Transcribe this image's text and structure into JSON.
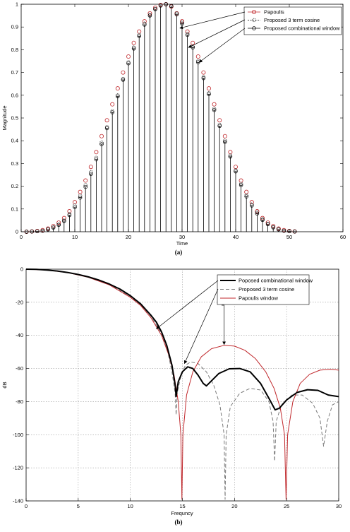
{
  "panels": {
    "a": {
      "label": "(a)"
    },
    "b": {
      "label": "(b)"
    }
  },
  "colors": {
    "papoulis": "#c0282c",
    "cosine3": "#7a7a7a",
    "combinational": "#000000",
    "stem": "#000000",
    "grid": "#9a9a9a"
  },
  "chart_data": [
    {
      "id": "a",
      "type": "scatter",
      "style": "stem",
      "xlabel": "Time",
      "ylabel": "Magnitude",
      "xlim": [
        0,
        60
      ],
      "ylim": [
        0,
        1
      ],
      "xticks": [
        "0",
        "10",
        "20",
        "30",
        "40",
        "50",
        "60"
      ],
      "yticks": [
        "0",
        "0.1",
        "0.2",
        "0.3",
        "0.4",
        "0.5",
        "0.6",
        "0.7",
        "0.8",
        "0.9",
        "1"
      ],
      "grid": false,
      "legend_position": "top-right",
      "x": [
        1,
        2,
        3,
        4,
        5,
        6,
        7,
        8,
        9,
        10,
        11,
        12,
        13,
        14,
        15,
        16,
        17,
        18,
        19,
        20,
        21,
        22,
        23,
        24,
        25,
        26,
        27,
        28,
        29,
        30,
        31,
        32,
        33,
        34,
        35,
        36,
        37,
        38,
        39,
        40,
        41,
        42,
        43,
        44,
        45,
        46,
        47,
        48,
        49,
        50,
        51
      ],
      "series": [
        {
          "name": "Papoulis",
          "marker": "circle",
          "color": "#c0282c",
          "values": [
            0,
            0.001,
            0.003,
            0.007,
            0.014,
            0.025,
            0.04,
            0.06,
            0.09,
            0.13,
            0.175,
            0.225,
            0.285,
            0.35,
            0.42,
            0.49,
            0.56,
            0.63,
            0.7,
            0.77,
            0.83,
            0.88,
            0.925,
            0.96,
            0.985,
            0.997,
            1,
            0.99,
            0.96,
            0.925,
            0.88,
            0.83,
            0.77,
            0.7,
            0.63,
            0.56,
            0.49,
            0.42,
            0.35,
            0.285,
            0.225,
            0.175,
            0.13,
            0.09,
            0.06,
            0.04,
            0.025,
            0.014,
            0.007,
            0.003,
            0.001
          ]
        },
        {
          "name": "Proposed 3 term cosine",
          "marker": "dash-circle",
          "color": "#000000",
          "values": [
            0,
            0.001,
            0.002,
            0.005,
            0.011,
            0.02,
            0.032,
            0.05,
            0.078,
            0.115,
            0.158,
            0.205,
            0.262,
            0.325,
            0.392,
            0.46,
            0.53,
            0.6,
            0.672,
            0.745,
            0.81,
            0.865,
            0.915,
            0.953,
            0.98,
            0.995,
            1,
            0.993,
            0.96,
            0.92,
            0.87,
            0.815,
            0.75,
            0.68,
            0.61,
            0.54,
            0.47,
            0.4,
            0.335,
            0.27,
            0.21,
            0.16,
            0.12,
            0.085,
            0.055,
            0.035,
            0.02,
            0.011,
            0.005,
            0.002,
            0.001
          ]
        },
        {
          "name": "Proposed combinational window",
          "marker": "circle-plus",
          "color": "#000000",
          "values": [
            0,
            0.001,
            0.002,
            0.004,
            0.01,
            0.018,
            0.03,
            0.047,
            0.073,
            0.108,
            0.15,
            0.197,
            0.254,
            0.318,
            0.385,
            0.455,
            0.525,
            0.595,
            0.668,
            0.74,
            0.805,
            0.86,
            0.91,
            0.95,
            0.978,
            0.994,
            1,
            0.992,
            0.955,
            0.915,
            0.865,
            0.81,
            0.745,
            0.675,
            0.605,
            0.535,
            0.465,
            0.395,
            0.33,
            0.265,
            0.205,
            0.155,
            0.115,
            0.08,
            0.052,
            0.033,
            0.019,
            0.01,
            0.004,
            0.002,
            0.001
          ]
        }
      ]
    },
    {
      "id": "b",
      "type": "line",
      "xlabel": "Frequncy",
      "ylabel": "dB",
      "xlim": [
        0,
        30
      ],
      "ylim": [
        -140,
        0
      ],
      "xticks": [
        "0",
        "5",
        "10",
        "15",
        "20",
        "25",
        "30"
      ],
      "yticks": [
        "0",
        "-20",
        "-40",
        "-60",
        "-80",
        "-100",
        "-120",
        "-140"
      ],
      "grid": true,
      "legend_position": "top-right",
      "series": [
        {
          "name": "Poposed combinational window",
          "color": "#000000",
          "width": 2,
          "dash": "",
          "points": [
            [
              0,
              0
            ],
            [
              1,
              -0.1
            ],
            [
              2,
              -0.5
            ],
            [
              3,
              -1.1
            ],
            [
              4,
              -2
            ],
            [
              5,
              -3.2
            ],
            [
              6,
              -4.7
            ],
            [
              7,
              -6.6
            ],
            [
              8,
              -9
            ],
            [
              9,
              -12
            ],
            [
              10,
              -16
            ],
            [
              11,
              -21
            ],
            [
              12,
              -28
            ],
            [
              12.5,
              -32
            ],
            [
              13,
              -38
            ],
            [
              13.5,
              -46
            ],
            [
              14,
              -58
            ],
            [
              14.3,
              -70
            ],
            [
              14.4,
              -77
            ],
            [
              14.6,
              -68
            ],
            [
              15,
              -62
            ],
            [
              15.5,
              -59
            ],
            [
              16,
              -60
            ],
            [
              16.5,
              -64
            ],
            [
              17,
              -69
            ],
            [
              17.3,
              -70.5
            ],
            [
              17.7,
              -68
            ],
            [
              18.5,
              -63
            ],
            [
              19.5,
              -60.2
            ],
            [
              20.5,
              -60
            ],
            [
              21.5,
              -62
            ],
            [
              22.5,
              -69
            ],
            [
              23.3,
              -78
            ],
            [
              23.9,
              -85
            ],
            [
              24.3,
              -84
            ],
            [
              25,
              -79
            ],
            [
              26,
              -74.5
            ],
            [
              27,
              -72.8
            ],
            [
              28,
              -73.2
            ],
            [
              29,
              -76
            ],
            [
              30,
              -77
            ]
          ]
        },
        {
          "name": "Proposed 3 term cosine",
          "color": "#7a7a7a",
          "width": 1,
          "dash": "5,3",
          "points": [
            [
              0,
              0
            ],
            [
              2,
              -0.5
            ],
            [
              4,
              -2
            ],
            [
              6,
              -4.8
            ],
            [
              8,
              -9.2
            ],
            [
              10,
              -16.5
            ],
            [
              11,
              -21.5
            ],
            [
              12,
              -28.5
            ],
            [
              13,
              -39
            ],
            [
              13.6,
              -50
            ],
            [
              14,
              -62
            ],
            [
              14.3,
              -75
            ],
            [
              14.4,
              -88
            ],
            [
              14.5,
              -75
            ],
            [
              14.9,
              -63
            ],
            [
              15.3,
              -58
            ],
            [
              15.8,
              -56
            ],
            [
              16.5,
              -57
            ],
            [
              17.3,
              -62
            ],
            [
              18,
              -70
            ],
            [
              18.6,
              -82
            ],
            [
              19,
              -100
            ],
            [
              19.1,
              -139
            ],
            [
              19.2,
              -100
            ],
            [
              19.6,
              -83
            ],
            [
              20.5,
              -75
            ],
            [
              21.5,
              -72
            ],
            [
              22.5,
              -73
            ],
            [
              23.3,
              -80
            ],
            [
              23.7,
              -92
            ],
            [
              23.85,
              -116
            ],
            [
              24,
              -92
            ],
            [
              24.5,
              -82
            ],
            [
              25.5,
              -76
            ],
            [
              26.5,
              -76
            ],
            [
              27.5,
              -81
            ],
            [
              28.2,
              -90
            ],
            [
              28.55,
              -107
            ],
            [
              28.9,
              -92
            ],
            [
              29.4,
              -82
            ],
            [
              30,
              -80
            ]
          ]
        },
        {
          "name": "Papoulis window",
          "color": "#c0282c",
          "width": 1,
          "dash": "",
          "points": [
            [
              0,
              0
            ],
            [
              2,
              -0.5
            ],
            [
              4,
              -2.1
            ],
            [
              6,
              -5
            ],
            [
              8,
              -9.5
            ],
            [
              10,
              -17
            ],
            [
              11,
              -22
            ],
            [
              12,
              -29.5
            ],
            [
              13,
              -40
            ],
            [
              13.7,
              -52
            ],
            [
              14.2,
              -64
            ],
            [
              14.6,
              -80
            ],
            [
              14.85,
              -100
            ],
            [
              14.95,
              -139
            ],
            [
              15.05,
              -100
            ],
            [
              15.4,
              -76
            ],
            [
              16,
              -62
            ],
            [
              16.8,
              -53
            ],
            [
              17.8,
              -48
            ],
            [
              19,
              -46
            ],
            [
              20,
              -46.5
            ],
            [
              21,
              -49
            ],
            [
              22,
              -54
            ],
            [
              23,
              -62
            ],
            [
              23.8,
              -72
            ],
            [
              24.4,
              -84
            ],
            [
              24.8,
              -100
            ],
            [
              24.95,
              -139
            ],
            [
              25.1,
              -100
            ],
            [
              25.6,
              -80
            ],
            [
              26.3,
              -69
            ],
            [
              27.2,
              -63.5
            ],
            [
              28.2,
              -61
            ],
            [
              29.2,
              -60.5
            ],
            [
              30,
              -61
            ]
          ]
        }
      ]
    }
  ]
}
